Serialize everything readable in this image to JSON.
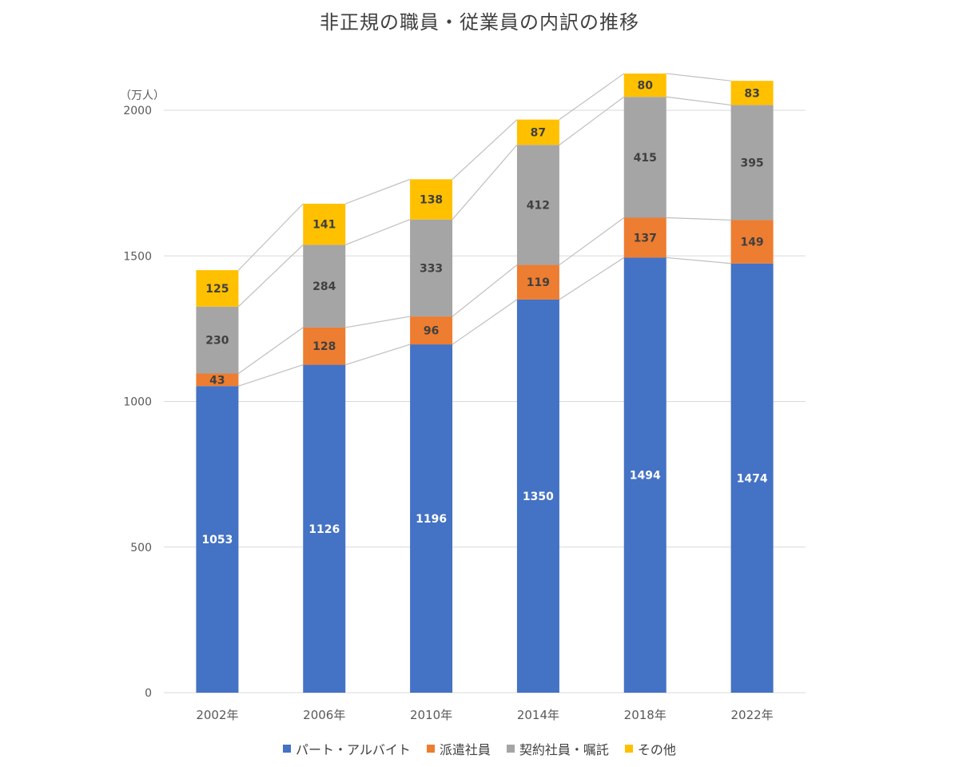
{
  "chart_data": {
    "type": "bar",
    "stacked": true,
    "title": "非正規の職員・従業員の内訳の推移",
    "unit_label": "（万人）",
    "categories": [
      "2002年",
      "2006年",
      "2010年",
      "2014年",
      "2018年",
      "2022年"
    ],
    "series": [
      {
        "name": "パート・アルバイト",
        "color": "#4472C4",
        "label_color": "#FFFFFF",
        "values": [
          1053,
          1126,
          1196,
          1350,
          1494,
          1474
        ]
      },
      {
        "name": "派遣社員",
        "color": "#ED7D31",
        "label_color": "#404040",
        "values": [
          43,
          128,
          96,
          119,
          137,
          149
        ]
      },
      {
        "name": "契約社員・嘱託",
        "color": "#A5A5A5",
        "label_color": "#404040",
        "values": [
          230,
          284,
          333,
          412,
          415,
          395
        ]
      },
      {
        "name": "その他",
        "color": "#FFC000",
        "label_color": "#404040",
        "values": [
          125,
          141,
          138,
          87,
          80,
          83
        ]
      }
    ],
    "ylim": [
      0,
      2000
    ],
    "yticks": [
      0,
      500,
      1000,
      1500,
      2000
    ],
    "grid": true,
    "series_lines": true,
    "legend": "bottom"
  }
}
